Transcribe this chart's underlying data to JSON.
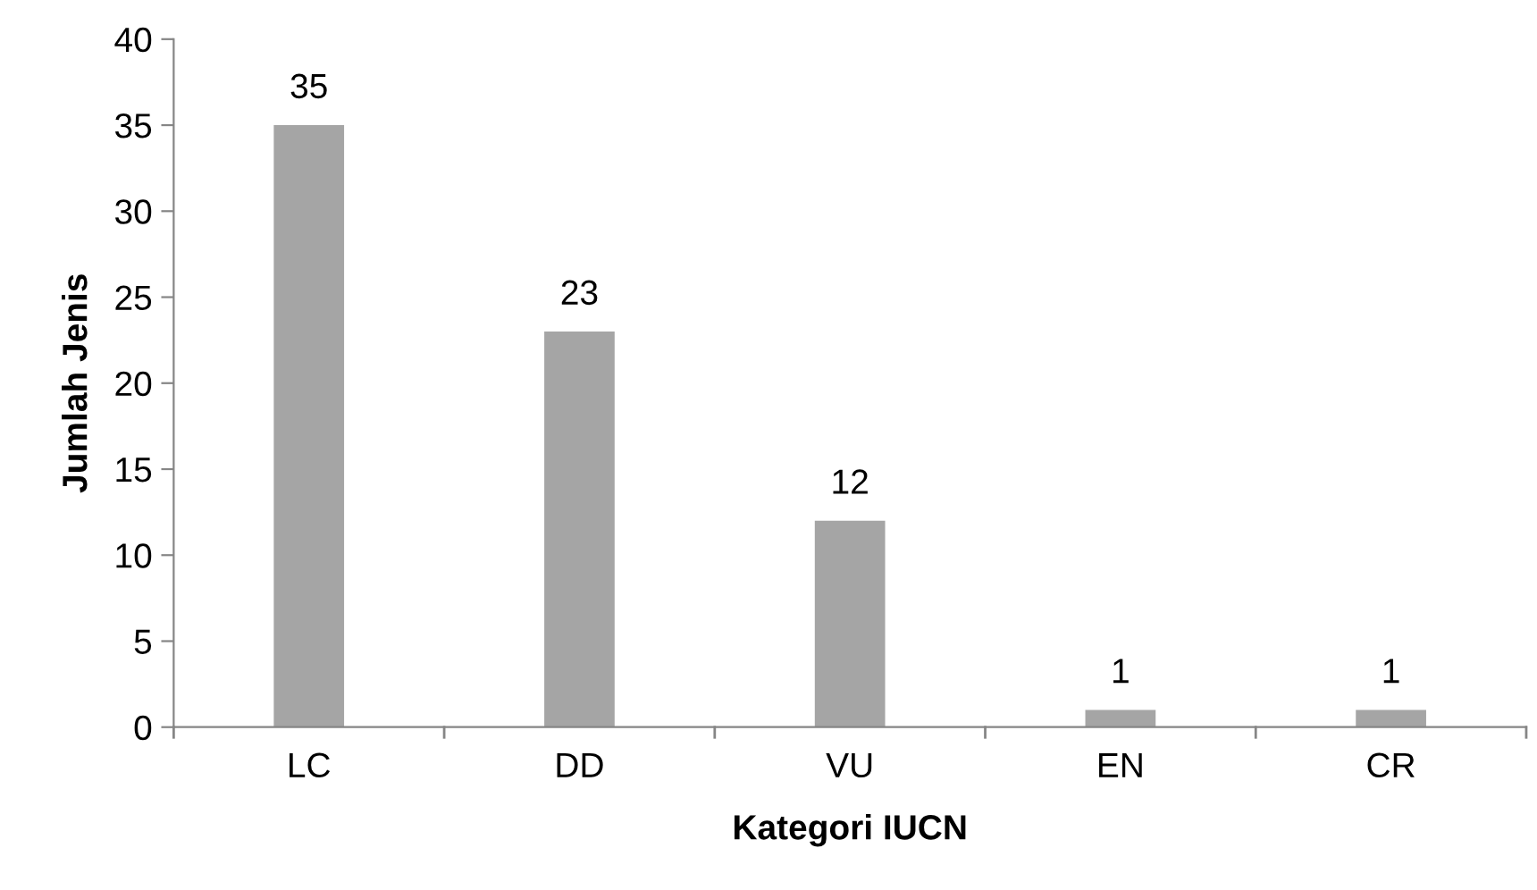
{
  "chart_data": {
    "type": "bar",
    "xlabel": "Kategori IUCN",
    "ylabel": "Jumlah Jenis",
    "categories": [
      "LC",
      "DD",
      "VU",
      "EN",
      "CR"
    ],
    "values": [
      35,
      23,
      12,
      1,
      1
    ],
    "color": "#a5a5a5",
    "ylim": [
      0,
      40
    ],
    "yticks": [
      0,
      5,
      10,
      15,
      20,
      25,
      30,
      35,
      40
    ],
    "grid": false,
    "data_labels": true
  }
}
